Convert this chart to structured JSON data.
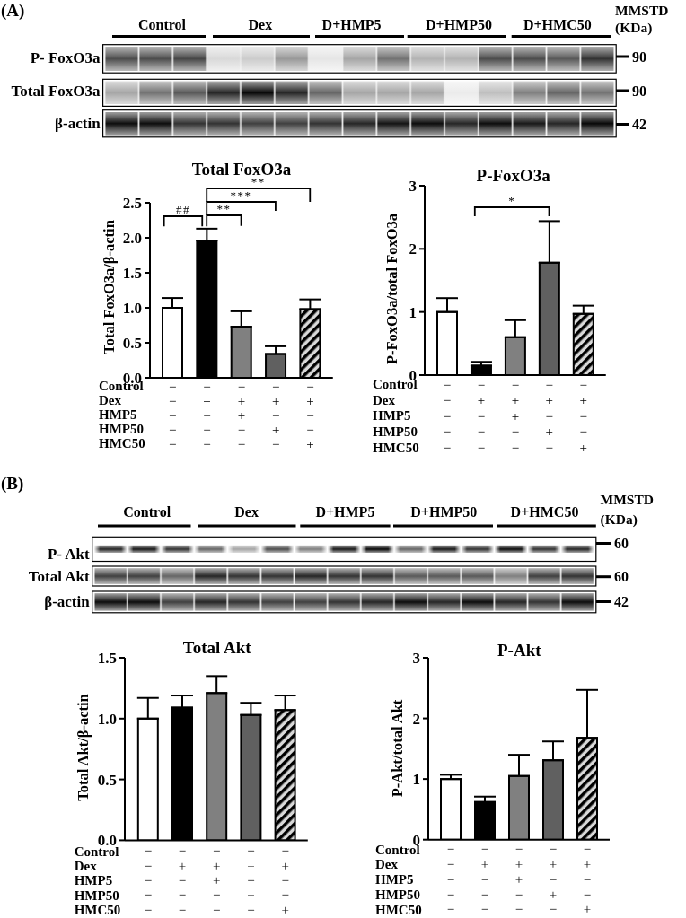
{
  "chart_data": [
    {
      "type": "other",
      "annotations": [
        "(A)"
      ],
      "categories": [
        "Control",
        "Dex",
        "D+HMP5",
        "D+HMP50",
        "D+HMC50"
      ],
      "y_categories": [
        "P- FoxO3a",
        "Total FoxO3a",
        "β-actin"
      ],
      "y2_categories": [
        "90",
        "90",
        "42"
      ],
      "y2label": "MMSTD (KDa)"
    },
    {
      "type": "bar",
      "title": "Total FoxO3a",
      "ylabel": "Total FoxO3a/β-actin",
      "categories": [
        "−\n−\n−\n−\n−",
        "−\n+\n−\n−\n−",
        "−\n+\n+\n−\n−",
        "−\n+\n−\n+\n−",
        "−\n+\n−\n−\n+"
      ],
      "values": [
        1.0,
        1.96,
        0.73,
        0.34,
        0.98
      ],
      "errors": [
        [
          1.0,
          1.14
        ],
        [
          1.96,
          2.13
        ],
        [
          0.73,
          0.95
        ],
        [
          0.34,
          0.45
        ],
        [
          0.98,
          1.12
        ]
      ],
      "colors": [
        "#ffffff",
        "#000000",
        "#808080",
        "#606060",
        "#000000"
      ],
      "ylim": [
        0,
        2.5
      ],
      "yticks": [
        {
          "value": 0,
          "label": "0.0"
        },
        0.5,
        {
          "value": 1,
          "label": "1.0"
        },
        1.5,
        {
          "value": 2,
          "label": "2.0"
        },
        2.5
      ],
      "annotations": [
        "Control",
        "Dex",
        "HMP5",
        "HMP50",
        "HMC50",
        "##",
        "**",
        "***",
        "**"
      ]
    },
    {
      "type": "bar",
      "title": "P-FoxO3a",
      "ylabel": "P-FoxO3a/total FoxO3a",
      "categories": [
        "−\n−\n−\n−\n−",
        "−\n+\n−\n−\n−",
        "−\n+\n+\n−\n−",
        "−\n+\n−\n+\n−",
        "−\n+\n−\n−\n+"
      ],
      "values": [
        1.0,
        0.15,
        0.6,
        1.78,
        0.97
      ],
      "errors": [
        [
          1.0,
          1.22
        ],
        [
          0.15,
          0.21
        ],
        [
          0.6,
          0.87
        ],
        [
          1.78,
          2.44
        ],
        [
          0.97,
          1.1
        ]
      ],
      "colors": [
        "#ffffff",
        "#000000",
        "#808080",
        "#606060",
        "#000000"
      ],
      "ylim": [
        0,
        3
      ],
      "yticks": [
        0,
        1,
        2,
        3
      ],
      "annotations": [
        "Control",
        "Dex",
        "HMP5",
        "HMP50",
        "HMC50",
        "*"
      ]
    },
    {
      "type": "other",
      "annotations": [
        "(B)"
      ],
      "categories": [
        "Control",
        "Dex",
        "D+HMP5",
        "D+HMP50",
        "D+HMC50"
      ],
      "y_categories": [
        "P- Akt",
        "Total Akt",
        "β-actin"
      ],
      "y2_categories": [
        "60",
        "60",
        "42"
      ],
      "y2label": "MMSTD (KDa)"
    },
    {
      "type": "bar",
      "title": "Total Akt",
      "ylabel": "Total Akt/β-actin",
      "categories": [
        "−\n−\n−\n−\n−",
        "−\n+\n−\n−\n−",
        "−\n+\n+\n−\n−",
        "−\n+\n−\n+\n−",
        "−\n+\n−\n−\n+"
      ],
      "values": [
        1.0,
        1.09,
        1.21,
        1.03,
        1.07
      ],
      "errors": [
        [
          1.0,
          1.17
        ],
        [
          1.09,
          1.19
        ],
        [
          1.21,
          1.35
        ],
        [
          1.03,
          1.13
        ],
        [
          1.07,
          1.19
        ]
      ],
      "colors": [
        "#ffffff",
        "#000000",
        "#808080",
        "#606060",
        "#000000"
      ],
      "ylim": [
        0,
        1.5
      ],
      "yticks": [
        {
          "value": 0,
          "label": "0.0"
        },
        0.5,
        {
          "value": 1,
          "label": "1.0"
        },
        1.5
      ],
      "annotations": [
        "Control",
        "Dex",
        "HMP5",
        "HMP50",
        "HMC50"
      ]
    },
    {
      "type": "bar",
      "title": "P-Akt",
      "ylabel": "P-Akt/total Akt",
      "categories": [
        "−\n−\n−\n−\n−",
        "−\n+\n−\n−\n−",
        "−\n+\n+\n−\n−",
        "−\n+\n−\n+\n−",
        "−\n+\n−\n−\n+"
      ],
      "values": [
        1.0,
        0.62,
        1.05,
        1.31,
        1.68
      ],
      "errors": [
        [
          1.0,
          1.07
        ],
        [
          0.62,
          0.71
        ],
        [
          1.05,
          1.4
        ],
        [
          1.31,
          1.62
        ],
        [
          1.68,
          2.47
        ]
      ],
      "colors": [
        "#ffffff",
        "#000000",
        "#808080",
        "#606060",
        "#000000"
      ],
      "ylim": [
        0,
        3
      ],
      "yticks": [
        0,
        1,
        2,
        3
      ],
      "annotations": [
        "Control",
        "Dex",
        "HMP5",
        "HMP50",
        "HMC50"
      ]
    }
  ]
}
